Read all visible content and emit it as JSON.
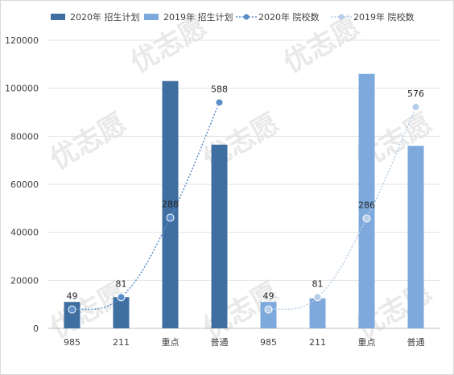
{
  "chart_data": {
    "type": "bar",
    "categories": [
      "985",
      "211",
      "重点",
      "普通",
      "985",
      "211",
      "重点",
      "普通"
    ],
    "series": [
      {
        "name": "2020年 招生计划",
        "kind": "bar",
        "color": "#3f6fa0",
        "values": [
          11000,
          13000,
          103000,
          76500,
          null,
          null,
          null,
          null
        ]
      },
      {
        "name": "2019年 招生计划",
        "kind": "bar",
        "color": "#7ea9dc",
        "values": [
          null,
          null,
          null,
          null,
          11000,
          12500,
          106000,
          76000
        ]
      },
      {
        "name": "2020年 院校数",
        "kind": "line",
        "color": "#5b8ec9",
        "values": [
          49,
          81,
          288,
          588,
          null,
          null,
          null,
          null
        ]
      },
      {
        "name": "2019年 院校数",
        "kind": "line",
        "color": "#b7cde8",
        "values": [
          null,
          null,
          null,
          null,
          49,
          81,
          286,
          576
        ]
      }
    ],
    "y_ticks": [
      "0",
      "20000",
      "40000",
      "60000",
      "80000",
      "100000",
      "120000"
    ],
    "ylim": [
      0,
      120000
    ],
    "title": "",
    "xlabel": "",
    "ylabel": "",
    "legend_position": "top",
    "grid": true,
    "watermark": "优志愿"
  }
}
